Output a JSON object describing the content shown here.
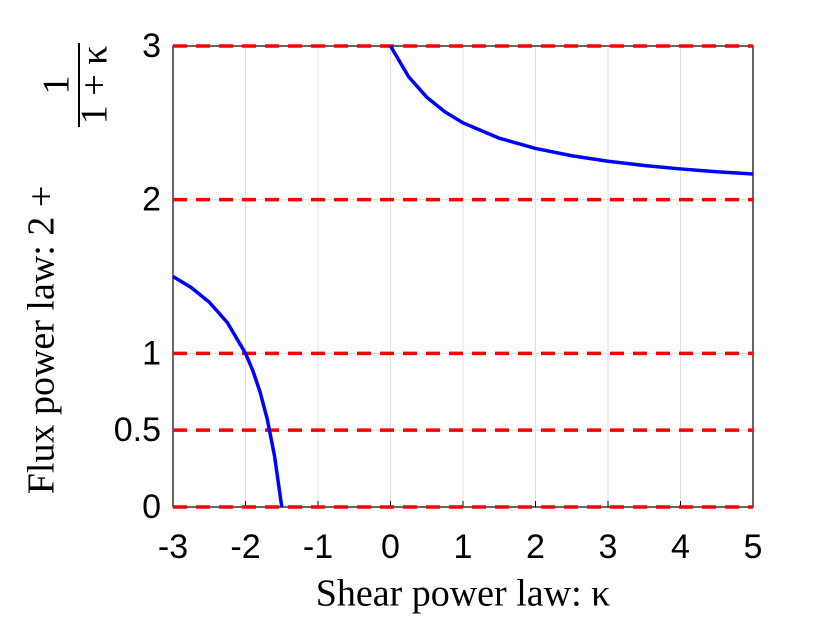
{
  "chart_data": {
    "type": "line",
    "xlabel": "Shear power law: κ",
    "ylabel": {
      "text": "Flux power law: 2 +",
      "numerator": "1",
      "denominator": "1 + κ"
    },
    "x": [
      -3,
      -2.75,
      -2.5,
      -2.25,
      -2,
      -1.9,
      -1.8,
      -1.7,
      -1.6,
      -1.5,
      null,
      0,
      0.25,
      0.5,
      0.75,
      1,
      1.5,
      2,
      2.5,
      3,
      3.5,
      4,
      4.5,
      5
    ],
    "series": [
      {
        "color": "#0000ff",
        "values": [
          1.5,
          1.4286,
          1.3333,
          1.2,
          1,
          0.8889,
          0.75,
          0.5714,
          0.3333,
          0,
          null,
          3,
          2.8,
          2.6667,
          2.5714,
          2.5,
          2.4,
          2.3333,
          2.2857,
          2.25,
          2.2222,
          2.2,
          2.1818,
          2.1667
        ]
      }
    ],
    "reference_lines": {
      "color": "#ff0000",
      "values": [
        0,
        0.5,
        1,
        2,
        3
      ]
    },
    "xlim": [
      -3,
      5
    ],
    "xticks": [
      -3,
      -2,
      -1,
      0,
      1,
      2,
      3,
      4,
      5
    ],
    "ylim": [
      0,
      3
    ],
    "yticks": [
      0,
      0.5,
      1,
      2,
      3
    ],
    "grid": true
  }
}
